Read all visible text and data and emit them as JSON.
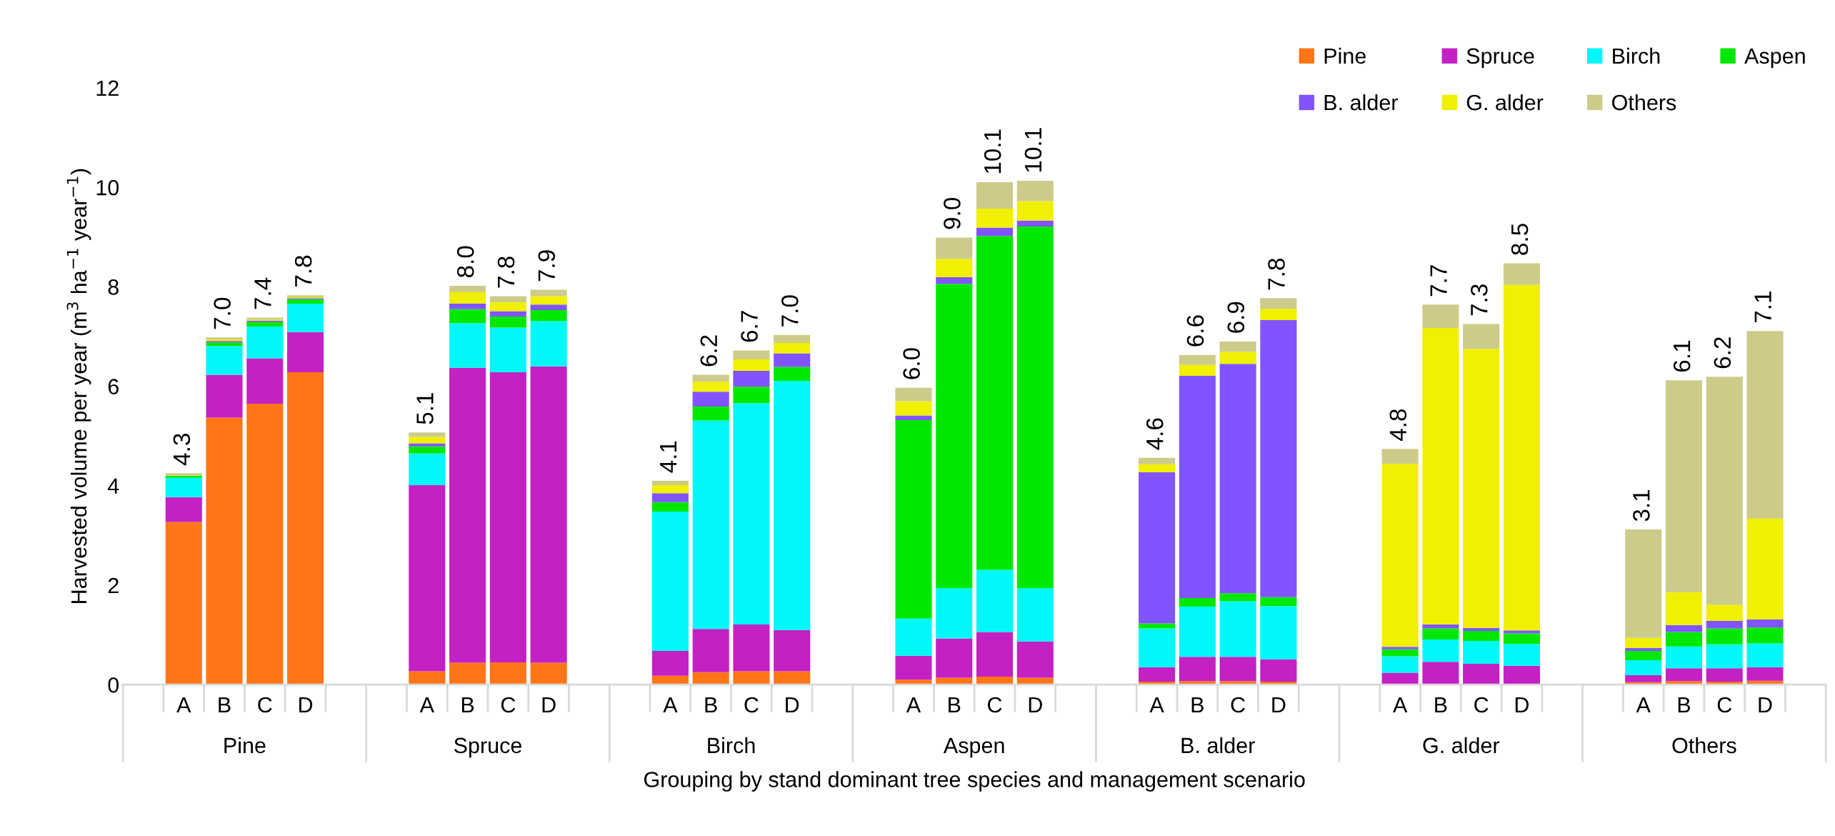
{
  "chart_data": {
    "type": "bar",
    "stacked": true,
    "ylabel": "Harvested volume per year (m$^{3}$ ha$^{−1}$ year$^{−1}$)",
    "xlabel": "Grouping by stand dominant tree species and management scenario",
    "annotations": [
      "Pine",
      "Spruce",
      "Birch",
      "Aspen",
      "B. alder",
      "G. alder",
      "Others"
    ],
    "categories": [
      null,
      "A",
      "B",
      "C",
      "D",
      null,
      null,
      "A",
      "B",
      "C",
      "D",
      null,
      null,
      "A",
      "B",
      "C",
      "D",
      null,
      null,
      "A",
      "B",
      "C",
      "D",
      null,
      null,
      "A",
      "B",
      "C",
      "D",
      null,
      null,
      "A",
      "B",
      "C",
      "D",
      null,
      null,
      "A",
      "B",
      "C",
      "D",
      null
    ],
    "ylim": [
      0,
      12
    ],
    "yticks": [
      0,
      2,
      4,
      6,
      8,
      10,
      12
    ],
    "grid": false,
    "legend": "top right",
    "series": [
      {
        "name": "Pine",
        "color": "#ff7518",
        "values": [
          null,
          3.27,
          5.37,
          5.65,
          6.28,
          null,
          null,
          0.27,
          0.44,
          0.45,
          0.44,
          null,
          null,
          0.18,
          0.25,
          0.27,
          0.27,
          null,
          null,
          0.1,
          0.14,
          0.16,
          0.14,
          null,
          null,
          0.06,
          0.07,
          0.07,
          0.06,
          null,
          null,
          null,
          null,
          null,
          null,
          null,
          null,
          0.05,
          0.07,
          0.06,
          0.08,
          null
        ]
      },
      {
        "name": "Spruce",
        "color": "#c321c3",
        "values": [
          null,
          0.5,
          0.86,
          0.91,
          0.81,
          null,
          null,
          3.74,
          5.93,
          5.83,
          5.96,
          null,
          null,
          0.5,
          0.87,
          0.94,
          0.83,
          null,
          null,
          0.48,
          0.79,
          0.9,
          0.73,
          null,
          null,
          0.29,
          0.49,
          0.49,
          0.45,
          null,
          null,
          0.24,
          0.46,
          0.42,
          0.38,
          null,
          null,
          0.14,
          0.26,
          0.27,
          0.27,
          null
        ]
      },
      {
        "name": "Birch",
        "color": "#00f8f8",
        "values": [
          null,
          0.39,
          0.58,
          0.64,
          0.57,
          null,
          null,
          0.64,
          0.9,
          0.9,
          0.91,
          null,
          null,
          2.8,
          4.19,
          4.45,
          5.01,
          null,
          null,
          0.75,
          1.01,
          1.25,
          1.07,
          null,
          null,
          0.78,
          1.01,
          1.12,
          1.07,
          null,
          null,
          0.33,
          0.45,
          0.46,
          0.44,
          null,
          null,
          0.3,
          0.44,
          0.48,
          0.48,
          null
        ]
      },
      {
        "name": "Aspen",
        "color": "#00e800",
        "values": [
          null,
          0.04,
          0.07,
          0.09,
          0.09,
          null,
          null,
          0.14,
          0.28,
          0.22,
          0.22,
          null,
          null,
          0.19,
          0.28,
          0.33,
          0.28,
          null,
          null,
          3.99,
          6.12,
          6.71,
          7.27,
          null,
          null,
          0.1,
          0.17,
          0.16,
          0.18,
          null,
          null,
          0.14,
          0.22,
          0.2,
          0.21,
          null,
          null,
          0.19,
          0.29,
          0.32,
          0.32,
          null
        ]
      },
      {
        "name": "B. alder",
        "color": "#8055ff",
        "values": [
          null,
          null,
          0.03,
          0.03,
          0.02,
          null,
          null,
          0.06,
          0.11,
          0.11,
          0.11,
          null,
          null,
          0.18,
          0.3,
          0.32,
          0.27,
          null,
          null,
          0.09,
          0.13,
          0.17,
          0.12,
          null,
          null,
          3.04,
          4.47,
          4.61,
          5.57,
          null,
          null,
          0.05,
          0.08,
          0.06,
          0.06,
          null,
          null,
          0.06,
          0.14,
          0.15,
          0.16,
          null
        ]
      },
      {
        "name": "G. alder",
        "color": "#f0f000",
        "values": [
          null,
          0.01,
          0.03,
          0.02,
          0.02,
          null,
          null,
          0.13,
          0.23,
          0.18,
          0.17,
          null,
          null,
          0.16,
          0.2,
          0.23,
          0.21,
          null,
          null,
          0.29,
          0.37,
          0.38,
          0.39,
          null,
          null,
          0.16,
          0.22,
          0.24,
          0.23,
          null,
          null,
          3.68,
          5.96,
          5.61,
          6.95,
          null,
          null,
          0.2,
          0.66,
          0.33,
          2.03,
          null
        ]
      },
      {
        "name": "Others",
        "color": "#cdcb8a",
        "values": [
          null,
          0.04,
          0.04,
          0.04,
          0.04,
          null,
          null,
          0.09,
          0.13,
          0.12,
          0.13,
          null,
          null,
          0.09,
          0.14,
          0.18,
          0.16,
          null,
          null,
          0.27,
          0.43,
          0.53,
          0.41,
          null,
          null,
          0.13,
          0.2,
          0.21,
          0.21,
          null,
          null,
          0.3,
          0.47,
          0.5,
          0.43,
          null,
          null,
          2.18,
          4.26,
          4.58,
          3.77,
          null
        ]
      }
    ],
    "totals": [
      null,
      "4.3",
      "7.0",
      "7.4",
      "7.8",
      null,
      null,
      "5.1",
      "8.0",
      "7.8",
      "7.9",
      null,
      null,
      "4.1",
      "6.2",
      "6.7",
      "7.0",
      null,
      null,
      "6.0",
      "9.0",
      "10.1",
      "10.1",
      null,
      null,
      "4.6",
      "6.6",
      "6.9",
      "7.8",
      null,
      null,
      "4.8",
      "7.7",
      "7.3",
      "8.5",
      null,
      null,
      "3.1",
      "6.1",
      "6.2",
      "7.1",
      null
    ]
  }
}
